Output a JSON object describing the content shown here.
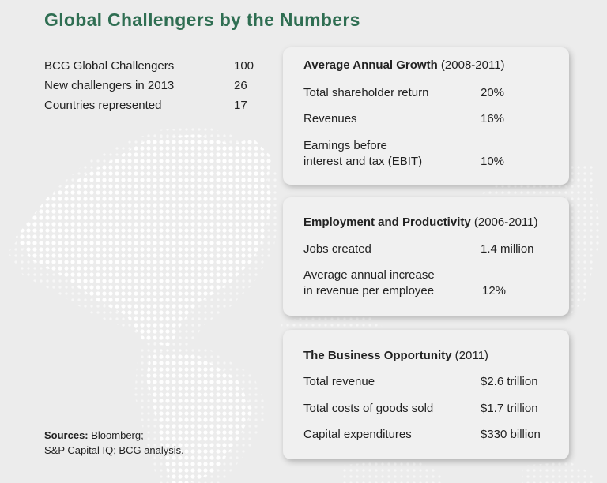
{
  "title": "Global Challengers by the Numbers",
  "stats": [
    {
      "label": "BCG Global Challengers",
      "value": "100"
    },
    {
      "label": "New challengers in 2013",
      "value": "26"
    },
    {
      "label": "Countries represented",
      "value": "17"
    }
  ],
  "sources": {
    "prefix": "Sources:",
    "line1": " Bloomberg;",
    "line2": "S&P Capital IQ; BCG analysis."
  },
  "cards": {
    "growth": {
      "heading": "Average Annual Growth",
      "period": " (2008-2011)",
      "rows": [
        {
          "label": "Total shareholder return",
          "value": "20%"
        },
        {
          "label": "Revenues",
          "value": "16%"
        },
        {
          "label_line1": "Earnings before",
          "label_line2": "interest and tax (EBIT)",
          "value": "10%"
        }
      ]
    },
    "employment": {
      "heading": "Employment and Productivity",
      "period": " (2006-2011)",
      "rows": [
        {
          "label": "Jobs created",
          "value": "1.4 million"
        },
        {
          "label_line1": "Average annual increase",
          "label_line2": "in revenue per employee",
          "value": "12%"
        }
      ]
    },
    "opportunity": {
      "heading": "The Business Opportunity",
      "period": " (2011)",
      "rows": [
        {
          "label": "Total revenue",
          "value": "$2.6 trillion"
        },
        {
          "label": "Total costs of goods sold",
          "value": "$1.7 trillion"
        },
        {
          "label": "Capital expenditures",
          "value": "$330 billion"
        }
      ]
    }
  },
  "colors": {
    "title": "#2f6e52",
    "background": "#ececec",
    "map_dots": "#ffffff"
  }
}
